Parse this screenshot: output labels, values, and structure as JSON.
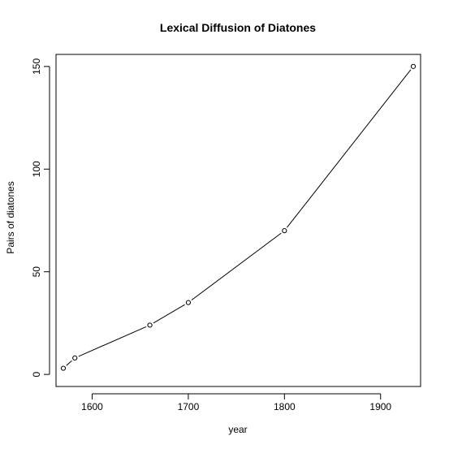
{
  "chart_data": {
    "type": "line",
    "title": "Lexical Diffusion of Diatones",
    "xlabel": "year",
    "ylabel": "Pairs of diatones",
    "x": [
      1570,
      1582,
      1660,
      1700,
      1800,
      1934
    ],
    "y": [
      3,
      8,
      24,
      35,
      70,
      150
    ],
    "xlim": [
      1562.4,
      1941.6
    ],
    "ylim": [
      -5.88,
      155.88
    ],
    "xticks": [
      1600,
      1700,
      1800,
      1900
    ],
    "yticks": [
      0,
      50,
      100,
      150
    ],
    "grid": false,
    "legend": "none",
    "colors": {
      "line": "#000000",
      "point_fill": "#ffffff",
      "background": "#ffffff"
    }
  }
}
